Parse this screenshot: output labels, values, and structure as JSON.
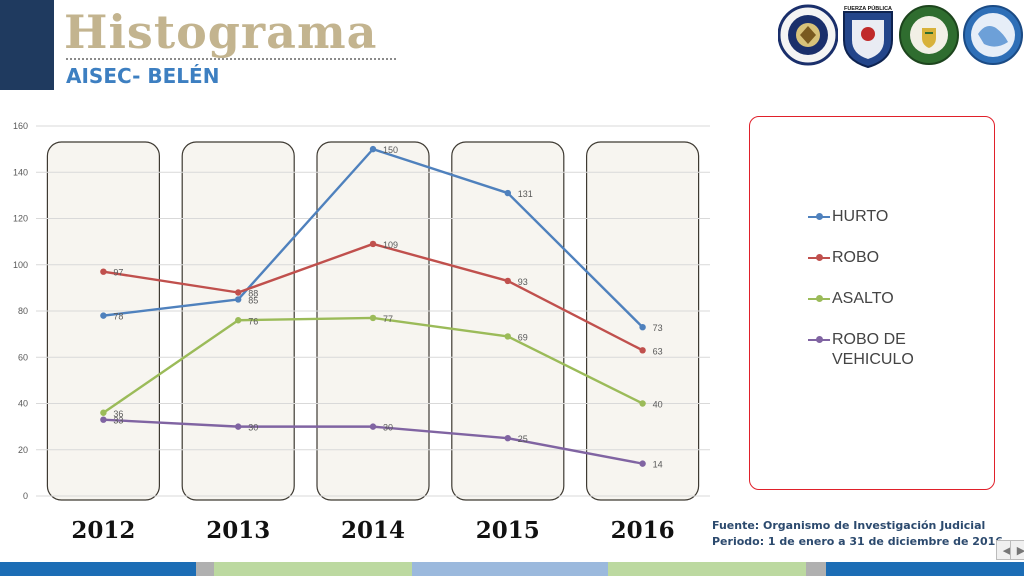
{
  "header": {
    "title": "Histograma",
    "subtitle": "AISEC- BELÉN"
  },
  "logos": [
    {
      "name": "us-embassy-seal-icon",
      "color": "#1a2f6b"
    },
    {
      "name": "fuerza-publica-shield-icon",
      "color": "#23458a",
      "text": "FUERZA PÚBLICA"
    },
    {
      "name": "policia-emblem-icon",
      "color": "#2f6d2f"
    },
    {
      "name": "agency-globe-icon",
      "color": "#2e6fb7"
    }
  ],
  "source": {
    "text": "Fuente: Organismo de Investigación Judicial Periodo: 1 de enero a 31 de diciembre de 2016"
  },
  "chart_data": {
    "type": "line",
    "categories": [
      "2012",
      "2013",
      "2014",
      "2015",
      "2016"
    ],
    "ylim": [
      0,
      160
    ],
    "yticks": [
      0,
      20,
      40,
      60,
      80,
      100,
      120,
      140,
      160
    ],
    "grid": true,
    "legend": "right",
    "series": [
      {
        "name": "HURTO",
        "color": "#4f81bd",
        "values": [
          78,
          85,
          150,
          131,
          73
        ]
      },
      {
        "name": "ROBO",
        "color": "#c0504d",
        "values": [
          97,
          88,
          109,
          93,
          63
        ]
      },
      {
        "name": "ASALTO",
        "color": "#9bbb59",
        "values": [
          36,
          76,
          77,
          69,
          40
        ]
      },
      {
        "name": "ROBO DE VEHICULO",
        "color": "#8064a2",
        "values": [
          33,
          30,
          30,
          25,
          14
        ]
      }
    ]
  }
}
